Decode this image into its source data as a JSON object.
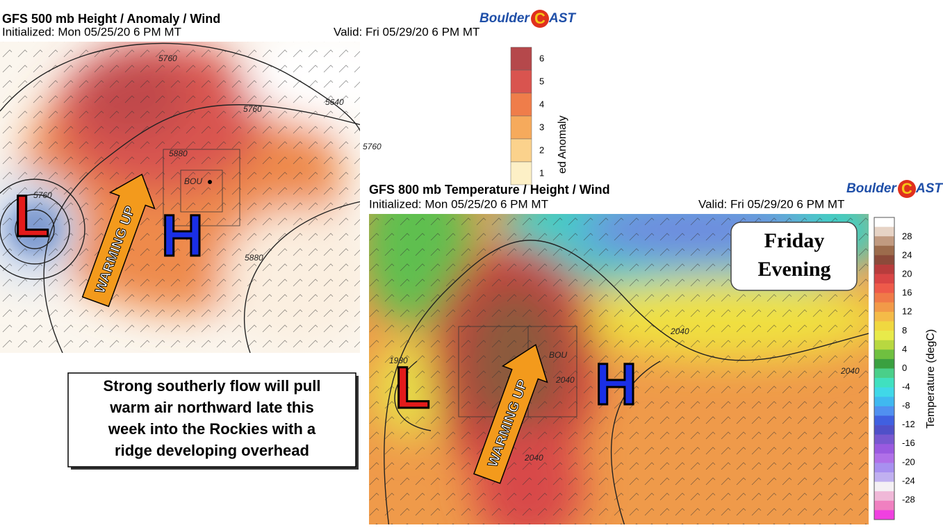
{
  "panel_500": {
    "title": "GFS 500 mb Height / Anomaly / Wind",
    "initialized": "Initialized: Mon 05/25/20 6 PM MT",
    "valid": "Valid: Fri 05/29/20 6 PM MT",
    "brand": {
      "left": "Boulder",
      "icon": "C",
      "right": "AST"
    },
    "colorbar": {
      "label": "ed Anomaly",
      "ticks": [
        "6",
        "5",
        "4",
        "3",
        "2",
        "1"
      ]
    },
    "contours": [
      "5760",
      "5640",
      "5760",
      "5760",
      "5880",
      "5880",
      "5760"
    ],
    "station": "BOU",
    "low": "L",
    "high": "H",
    "arrow": "WARMING UP"
  },
  "panel_800": {
    "title": "GFS 800 mb Temperature / Height / Wind",
    "initialized": "Initialized: Mon 05/25/20 6 PM MT",
    "valid": "Valid: Fri 05/29/20 6 PM MT",
    "brand": {
      "left": "Boulder",
      "icon": "C",
      "right": "AST"
    },
    "colorbar": {
      "label": "Temperature (degC)",
      "ticks": [
        "28",
        "24",
        "20",
        "16",
        "12",
        "8",
        "4",
        "0",
        "-4",
        "-8",
        "-12",
        "-16",
        "-20",
        "-24",
        "-28"
      ]
    },
    "contours": [
      "1980",
      "2040",
      "2040",
      "2040",
      "2040"
    ],
    "station": "BOU",
    "low": "L",
    "high": "H",
    "arrow": "WARMING UP",
    "label_box": {
      "line1": "Friday",
      "line2": "Evening"
    }
  },
  "callout": {
    "lines": [
      "Strong southerly flow will pull",
      "warm air northward late this",
      "week into the Rockies with a",
      "ridge developing overhead"
    ]
  }
}
